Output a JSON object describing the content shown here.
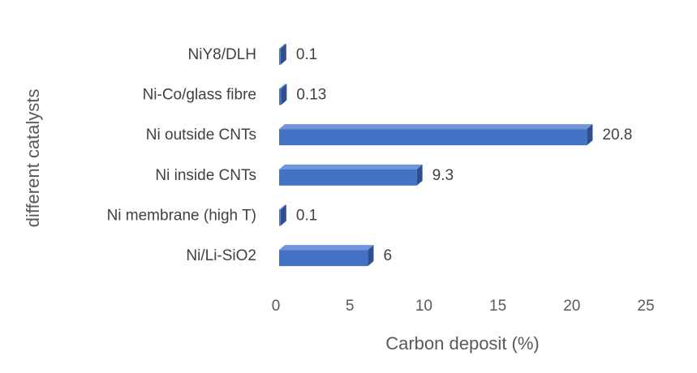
{
  "chart_data": {
    "type": "bar",
    "orientation": "horizontal",
    "x_label": "Carbon deposit (%)",
    "y_label": "different catalysts",
    "categories": [
      "NiY8/DLH",
      "Ni-Co/glass fibre",
      "Ni outside CNTs",
      "Ni inside CNTs",
      "Ni membrane (high T)",
      "Ni/Li-SiO2"
    ],
    "values": [
      0.1,
      0.13,
      20.8,
      9.3,
      0.1,
      6
    ],
    "color": "#4472c4",
    "xlim": [
      0,
      25
    ],
    "xticks": [
      0,
      5,
      10,
      15,
      20,
      25
    ],
    "grid": false
  }
}
